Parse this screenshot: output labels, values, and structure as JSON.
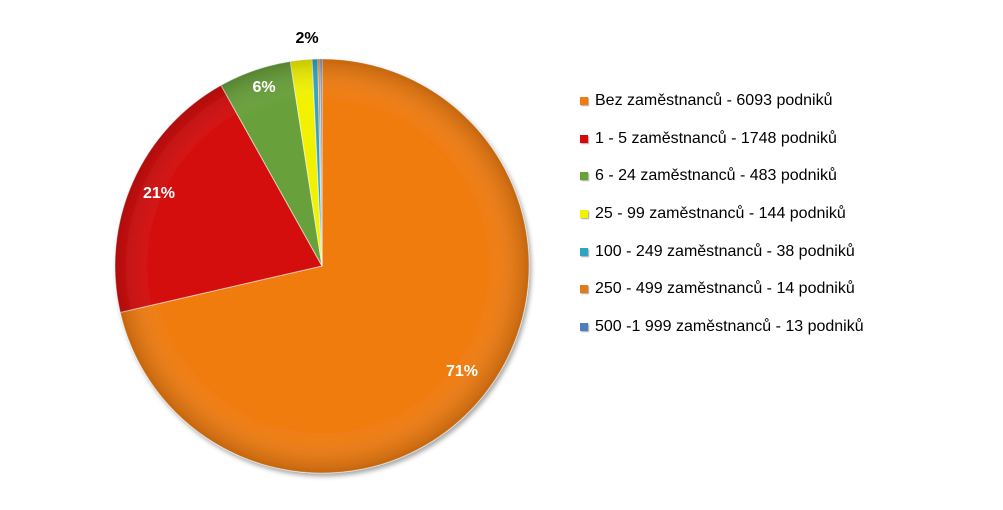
{
  "chart_data": {
    "type": "pie",
    "slices": [
      {
        "name": "Bez zaměstnanců - 6093 podniků",
        "value": 6093,
        "label": "71%",
        "color": "#F07C10",
        "label_color": "#FFFFFF"
      },
      {
        "name": "1 - 5 zaměstnanců - 1748 podniků",
        "value": 1748,
        "label": "21%",
        "color": "#D40A0A",
        "label_color": "#FFFFFF"
      },
      {
        "name": "6 - 24 zaměstnanců - 483 podniků",
        "value": 483,
        "label": "6%",
        "color": "#68A03A",
        "label_color": "#FFFFFF"
      },
      {
        "name": "25 - 99 zaměstnanců - 144 podniků",
        "value": 144,
        "label": "2%",
        "color": "#F2F200",
        "label_color": "#000000"
      },
      {
        "name": "100 - 249 zaměstnanců - 38 podniků",
        "value": 38,
        "label": "",
        "color": "#2FA5C5",
        "label_color": "#000000"
      },
      {
        "name": "250 - 499 zaměstnanců - 14 podniků",
        "value": 14,
        "label": "",
        "color": "#E07A1A",
        "label_color": "#000000"
      },
      {
        "name": "500 -1 999 zaměstnanců - 13 podniků",
        "value": 13,
        "label": "",
        "color": "#4F7EBD",
        "label_color": "#000000"
      }
    ],
    "legend_position": "right"
  }
}
